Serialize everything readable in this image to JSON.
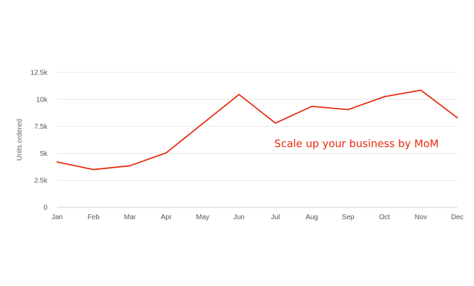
{
  "chart_data": {
    "type": "line",
    "title": "",
    "xlabel": "",
    "ylabel": "Units ordered",
    "categories": [
      "Jan",
      "Feb",
      "Mar",
      "Apr",
      "May",
      "Jun",
      "Jul",
      "Aug",
      "Sep",
      "Oct",
      "Nov",
      "Dec"
    ],
    "series": [
      {
        "values": [
          4200,
          3500,
          3850,
          5050,
          7750,
          10450,
          7800,
          9350,
          9050,
          10250,
          10850,
          8300
        ],
        "color": "#e8290b"
      }
    ],
    "ylim": [
      0,
      12500
    ],
    "yticks": [
      0,
      2500,
      5000,
      7500,
      10000,
      12500
    ],
    "ytick_labels": [
      "0",
      "2.5k",
      "5k",
      "7.5k",
      "10k",
      "12.5k"
    ],
    "grid": true,
    "legend": "none",
    "annotations": [
      {
        "text": "Scale up your business by MoM",
        "color": "#e8290b",
        "x": "Sep",
        "y": 5900
      }
    ]
  }
}
